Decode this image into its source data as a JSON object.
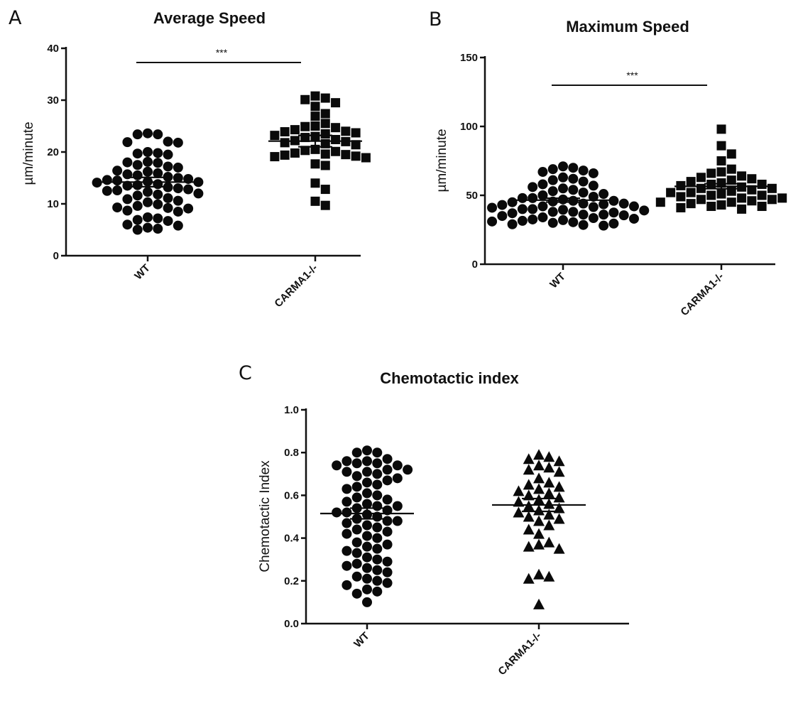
{
  "chart_data": [
    {
      "type": "scatter",
      "panel": "A",
      "title": "Average Speed",
      "ylabel": "µm/minute",
      "ylim": [
        0,
        40
      ],
      "yticks": [
        0,
        10,
        20,
        30,
        40
      ],
      "categories": [
        "WT",
        "CARMA1-/-"
      ],
      "marker_shapes": [
        "circle",
        "square"
      ],
      "mean_lines": [
        14.2,
        22.1
      ],
      "sem_ranges": [
        [
          13.3,
          15.1
        ],
        [
          21.0,
          23.2
        ]
      ],
      "significance": {
        "label": "***",
        "between": [
          "WT",
          "CARMA1-/-"
        ]
      },
      "series": [
        {
          "values": [
            23.6,
            23.4,
            23.4,
            21.9,
            22.0,
            21.8,
            20.0,
            19.7,
            19.5,
            19.8,
            18.1,
            17.9,
            18.0,
            17.5,
            17.2,
            17.0,
            16.4,
            16.2,
            15.9,
            15.7,
            15.5,
            15.2,
            15.0,
            14.8,
            14.6,
            14.5,
            14.3,
            14.2,
            14.1,
            13.8,
            13.6,
            13.5,
            13.2,
            13.0,
            12.8,
            12.6,
            12.5,
            12.3,
            12.0,
            11.8,
            11.6,
            11.1,
            10.9,
            10.6,
            10.3,
            9.9,
            9.6,
            9.3,
            9.1,
            9.2,
            8.7,
            8.5,
            7.4,
            7.2,
            6.9,
            6.7,
            6.0,
            5.8,
            5.4,
            5.2,
            5.0
          ]
        },
        {
          "values": [
            30.8,
            30.1,
            30.4,
            29.5,
            28.8,
            27.4,
            26.9,
            25.5,
            25.0,
            24.7,
            24.9,
            24.3,
            24.0,
            23.9,
            23.7,
            23.5,
            23.2,
            23.0,
            22.8,
            22.4,
            22.2,
            22.0,
            21.8,
            21.6,
            21.4,
            20.5,
            20.3,
            20.1,
            19.8,
            19.6,
            19.5,
            19.4,
            19.2,
            19.1,
            18.9,
            17.7,
            17.4,
            14.0,
            12.8,
            10.5,
            9.7
          ]
        }
      ]
    },
    {
      "type": "scatter",
      "panel": "B",
      "title": "Maximum Speed",
      "ylabel": "µm/minute",
      "ylim": [
        0,
        150
      ],
      "yticks": [
        0,
        50,
        100,
        150
      ],
      "categories": [
        "WT",
        "CARMA1-/-"
      ],
      "marker_shapes": [
        "circle",
        "square"
      ],
      "mean_lines": [
        46.5,
        56.5
      ],
      "sem_ranges": [
        [
          45.1,
          47.9
        ],
        [
          54.8,
          58.4
        ]
      ],
      "significance": {
        "label": "***",
        "between": [
          "WT",
          "CARMA1-/-"
        ]
      },
      "series": [
        {
          "values": [
            71,
            70,
            69,
            68,
            67,
            66,
            63,
            62,
            61,
            60,
            58,
            57,
            56,
            55,
            54,
            53,
            52,
            51,
            50,
            49,
            48,
            47,
            46,
            45.5,
            45,
            44,
            43.5,
            43,
            42,
            41.5,
            41,
            40,
            39.5,
            39,
            38,
            37.5,
            37,
            36,
            35.5,
            35,
            34,
            33.5,
            33,
            32.5,
            32,
            31.5,
            31,
            30.5,
            30,
            29.5,
            29,
            28.5,
            28,
            48,
            46,
            44,
            42,
            40,
            38,
            36
          ]
        },
        {
          "values": [
            98,
            86,
            80,
            75,
            69,
            67,
            66,
            64,
            63,
            62,
            61,
            60,
            59,
            58,
            58,
            57,
            56,
            55,
            55,
            54,
            53,
            52,
            51,
            50,
            49,
            48,
            48,
            47,
            46,
            45,
            45,
            44,
            43,
            42,
            42,
            41,
            40,
            52,
            50,
            47
          ]
        }
      ]
    },
    {
      "type": "scatter",
      "panel": "C",
      "title": "Chemotactic index",
      "ylabel": "Chemotactic Index",
      "ylim": [
        0,
        1
      ],
      "yticks": [
        "0.0",
        "0.2",
        "0.4",
        "0.6",
        "0.8",
        "1.0"
      ],
      "categories": [
        "WT",
        "CARMA1-/-"
      ],
      "marker_shapes": [
        "circle",
        "triangle"
      ],
      "mean_lines": [
        0.515,
        0.555
      ],
      "sem_ranges": [
        [
          0.49,
          0.54
        ],
        [
          0.525,
          0.585
        ]
      ],
      "series": [
        {
          "values": [
            0.81,
            0.8,
            0.8,
            0.77,
            0.76,
            0.76,
            0.75,
            0.75,
            0.74,
            0.74,
            0.72,
            0.72,
            0.71,
            0.71,
            0.7,
            0.69,
            0.68,
            0.67,
            0.66,
            0.65,
            0.64,
            0.63,
            0.61,
            0.6,
            0.59,
            0.58,
            0.57,
            0.56,
            0.55,
            0.54,
            0.53,
            0.52,
            0.51,
            0.5,
            0.49,
            0.48,
            0.47,
            0.46,
            0.45,
            0.44,
            0.43,
            0.42,
            0.41,
            0.4,
            0.38,
            0.37,
            0.36,
            0.35,
            0.34,
            0.33,
            0.31,
            0.3,
            0.29,
            0.28,
            0.27,
            0.26,
            0.25,
            0.24,
            0.22,
            0.21,
            0.2,
            0.19,
            0.18,
            0.16,
            0.15,
            0.14,
            0.1,
            0.55,
            0.52,
            0.48
          ]
        },
        {
          "values": [
            0.79,
            0.78,
            0.77,
            0.76,
            0.74,
            0.73,
            0.72,
            0.71,
            0.68,
            0.66,
            0.65,
            0.64,
            0.63,
            0.62,
            0.61,
            0.6,
            0.59,
            0.58,
            0.57,
            0.56,
            0.55,
            0.54,
            0.53,
            0.52,
            0.51,
            0.5,
            0.49,
            0.48,
            0.46,
            0.44,
            0.42,
            0.38,
            0.37,
            0.36,
            0.35,
            0.23,
            0.22,
            0.21,
            0.09
          ]
        }
      ]
    }
  ]
}
